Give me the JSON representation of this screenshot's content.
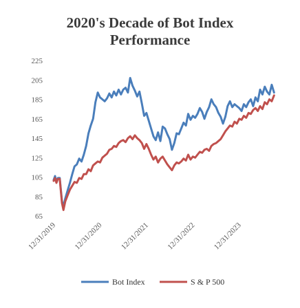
{
  "chart_data": {
    "type": "line",
    "title_lines": [
      "2020's Decade of Bot Index",
      "Performance"
    ],
    "xlabel": "",
    "ylabel": "",
    "ylim": [
      65,
      225
    ],
    "yticks": [
      65,
      85,
      105,
      125,
      145,
      165,
      185,
      205,
      225
    ],
    "grid": false,
    "legend_position": "bottom",
    "x_tick_labels": [
      "12/31/2019",
      "12/31/2020",
      "12/31/2021",
      "12/31/2022",
      "12/31/2023"
    ],
    "x_tick_years": [
      2020,
      2021,
      2022,
      2023,
      2024
    ],
    "x_range": [
      2020.0,
      2024.85
    ],
    "series": [
      {
        "name": "Bot Index",
        "color": "#4a7ebb",
        "points": [
          [
            2020.0,
            102
          ],
          [
            2020.03,
            106
          ],
          [
            2020.06,
            100
          ],
          [
            2020.09,
            104
          ],
          [
            2020.13,
            104
          ],
          [
            2020.18,
            80
          ],
          [
            2020.21,
            75
          ],
          [
            2020.25,
            83
          ],
          [
            2020.3,
            91
          ],
          [
            2020.35,
            99
          ],
          [
            2020.4,
            108
          ],
          [
            2020.45,
            116
          ],
          [
            2020.5,
            118
          ],
          [
            2020.55,
            124
          ],
          [
            2020.6,
            121
          ],
          [
            2020.65,
            128
          ],
          [
            2020.7,
            137
          ],
          [
            2020.75,
            150
          ],
          [
            2020.8,
            158
          ],
          [
            2020.85,
            165
          ],
          [
            2020.9,
            182
          ],
          [
            2020.95,
            192
          ],
          [
            2021.0,
            187
          ],
          [
            2021.05,
            185
          ],
          [
            2021.1,
            183
          ],
          [
            2021.15,
            186
          ],
          [
            2021.2,
            191
          ],
          [
            2021.25,
            187
          ],
          [
            2021.3,
            193
          ],
          [
            2021.35,
            189
          ],
          [
            2021.4,
            195
          ],
          [
            2021.45,
            190
          ],
          [
            2021.5,
            195
          ],
          [
            2021.55,
            197
          ],
          [
            2021.6,
            192
          ],
          [
            2021.65,
            207
          ],
          [
            2021.7,
            199
          ],
          [
            2021.75,
            194
          ],
          [
            2021.8,
            188
          ],
          [
            2021.85,
            193
          ],
          [
            2021.9,
            181
          ],
          [
            2021.95,
            168
          ],
          [
            2022.0,
            171
          ],
          [
            2022.05,
            163
          ],
          [
            2022.1,
            155
          ],
          [
            2022.15,
            147
          ],
          [
            2022.2,
            143
          ],
          [
            2022.25,
            151
          ],
          [
            2022.3,
            142
          ],
          [
            2022.35,
            157
          ],
          [
            2022.4,
            155
          ],
          [
            2022.45,
            149
          ],
          [
            2022.5,
            144
          ],
          [
            2022.55,
            133
          ],
          [
            2022.6,
            140
          ],
          [
            2022.65,
            150
          ],
          [
            2022.7,
            149
          ],
          [
            2022.75,
            155
          ],
          [
            2022.8,
            161
          ],
          [
            2022.85,
            158
          ],
          [
            2022.9,
            170
          ],
          [
            2022.95,
            164
          ],
          [
            2023.0,
            168
          ],
          [
            2023.05,
            166
          ],
          [
            2023.1,
            170
          ],
          [
            2023.15,
            176
          ],
          [
            2023.2,
            172
          ],
          [
            2023.25,
            165
          ],
          [
            2023.3,
            172
          ],
          [
            2023.35,
            177
          ],
          [
            2023.4,
            185
          ],
          [
            2023.45,
            180
          ],
          [
            2023.5,
            177
          ],
          [
            2023.55,
            171
          ],
          [
            2023.6,
            167
          ],
          [
            2023.65,
            160
          ],
          [
            2023.7,
            167
          ],
          [
            2023.75,
            178
          ],
          [
            2023.8,
            183
          ],
          [
            2023.85,
            177
          ],
          [
            2023.9,
            180
          ],
          [
            2023.95,
            178
          ],
          [
            2024.0,
            176
          ],
          [
            2024.05,
            173
          ],
          [
            2024.1,
            180
          ],
          [
            2024.15,
            177
          ],
          [
            2024.2,
            182
          ],
          [
            2024.25,
            185
          ],
          [
            2024.3,
            178
          ],
          [
            2024.35,
            187
          ],
          [
            2024.4,
            183
          ],
          [
            2024.45,
            195
          ],
          [
            2024.5,
            190
          ],
          [
            2024.55,
            198
          ],
          [
            2024.6,
            193
          ],
          [
            2024.65,
            190
          ],
          [
            2024.7,
            200
          ],
          [
            2024.75,
            192
          ]
        ]
      },
      {
        "name": "S & P 500",
        "color": "#c0504d",
        "points": [
          [
            2020.0,
            101
          ],
          [
            2020.03,
            104
          ],
          [
            2020.06,
            99
          ],
          [
            2020.09,
            103
          ],
          [
            2020.13,
            103
          ],
          [
            2020.18,
            78
          ],
          [
            2020.21,
            71
          ],
          [
            2020.25,
            80
          ],
          [
            2020.3,
            86
          ],
          [
            2020.35,
            92
          ],
          [
            2020.4,
            96
          ],
          [
            2020.45,
            100
          ],
          [
            2020.5,
            99
          ],
          [
            2020.55,
            104
          ],
          [
            2020.6,
            103
          ],
          [
            2020.65,
            108
          ],
          [
            2020.7,
            108
          ],
          [
            2020.75,
            113
          ],
          [
            2020.8,
            111
          ],
          [
            2020.85,
            117
          ],
          [
            2020.9,
            119
          ],
          [
            2020.95,
            121
          ],
          [
            2021.0,
            120
          ],
          [
            2021.05,
            125
          ],
          [
            2021.1,
            127
          ],
          [
            2021.15,
            129
          ],
          [
            2021.2,
            133
          ],
          [
            2021.25,
            134
          ],
          [
            2021.3,
            137
          ],
          [
            2021.35,
            136
          ],
          [
            2021.4,
            140
          ],
          [
            2021.45,
            142
          ],
          [
            2021.5,
            143
          ],
          [
            2021.55,
            141
          ],
          [
            2021.6,
            145
          ],
          [
            2021.65,
            147
          ],
          [
            2021.7,
            144
          ],
          [
            2021.75,
            148
          ],
          [
            2021.8,
            145
          ],
          [
            2021.85,
            143
          ],
          [
            2021.9,
            140
          ],
          [
            2021.95,
            134
          ],
          [
            2022.0,
            139
          ],
          [
            2022.05,
            134
          ],
          [
            2022.1,
            128
          ],
          [
            2022.15,
            123
          ],
          [
            2022.2,
            126
          ],
          [
            2022.25,
            120
          ],
          [
            2022.3,
            124
          ],
          [
            2022.35,
            126
          ],
          [
            2022.4,
            122
          ],
          [
            2022.45,
            118
          ],
          [
            2022.5,
            115
          ],
          [
            2022.55,
            112
          ],
          [
            2022.6,
            117
          ],
          [
            2022.65,
            120
          ],
          [
            2022.7,
            119
          ],
          [
            2022.75,
            121
          ],
          [
            2022.8,
            124
          ],
          [
            2022.85,
            122
          ],
          [
            2022.9,
            128
          ],
          [
            2022.95,
            123
          ],
          [
            2023.0,
            126
          ],
          [
            2023.05,
            125
          ],
          [
            2023.1,
            128
          ],
          [
            2023.15,
            131
          ],
          [
            2023.2,
            130
          ],
          [
            2023.25,
            133
          ],
          [
            2023.3,
            134
          ],
          [
            2023.35,
            132
          ],
          [
            2023.4,
            137
          ],
          [
            2023.45,
            139
          ],
          [
            2023.5,
            140
          ],
          [
            2023.55,
            142
          ],
          [
            2023.6,
            144
          ],
          [
            2023.65,
            148
          ],
          [
            2023.7,
            152
          ],
          [
            2023.75,
            155
          ],
          [
            2023.8,
            158
          ],
          [
            2023.85,
            157
          ],
          [
            2023.9,
            162
          ],
          [
            2023.95,
            160
          ],
          [
            2024.0,
            165
          ],
          [
            2024.05,
            164
          ],
          [
            2024.1,
            168
          ],
          [
            2024.15,
            166
          ],
          [
            2024.2,
            171
          ],
          [
            2024.25,
            170
          ],
          [
            2024.3,
            174
          ],
          [
            2024.35,
            176
          ],
          [
            2024.4,
            173
          ],
          [
            2024.45,
            178
          ],
          [
            2024.5,
            175
          ],
          [
            2024.55,
            182
          ],
          [
            2024.6,
            180
          ],
          [
            2024.65,
            185
          ],
          [
            2024.7,
            183
          ],
          [
            2024.75,
            189
          ]
        ]
      }
    ]
  }
}
